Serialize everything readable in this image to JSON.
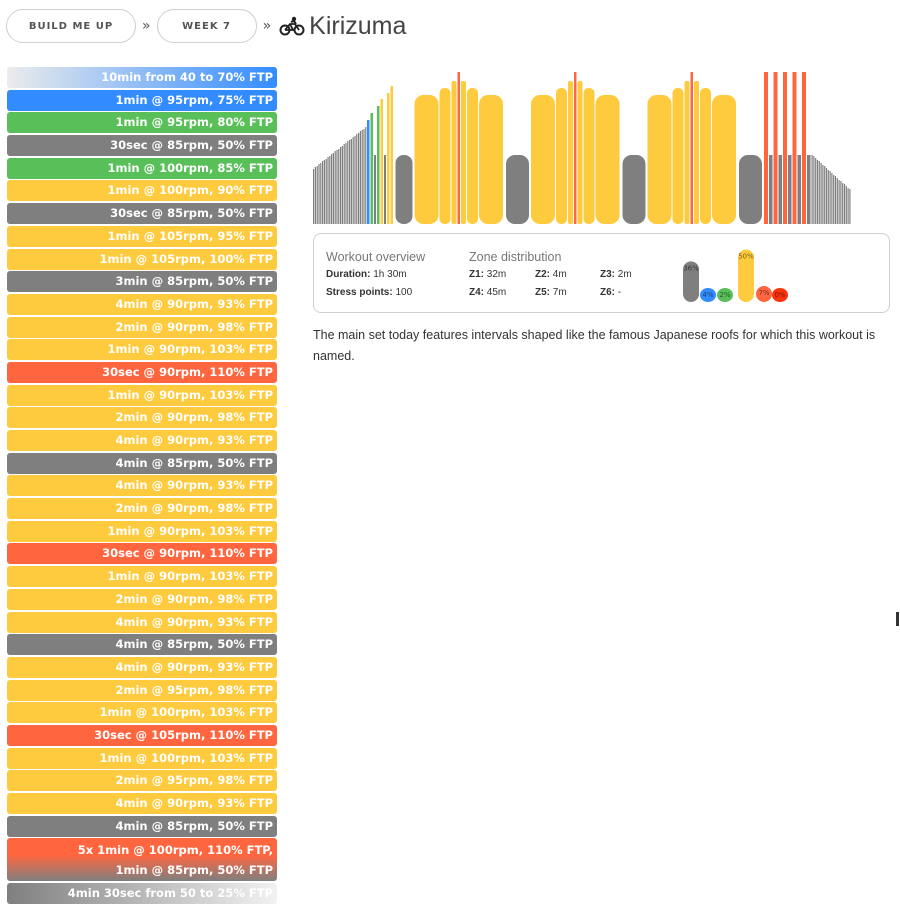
{
  "breadcrumb": {
    "plan": "BUILD ME UP",
    "week": "WEEK 7",
    "separator": "»",
    "workout_title": "Kirizuma",
    "workout_icon": "bike-icon"
  },
  "intervals": [
    {
      "label": "10min from 40 to 70% FTP",
      "zone": "warm"
    },
    {
      "label": "1min @ 95rpm, 75% FTP",
      "zone": "blue"
    },
    {
      "label": "1min @ 95rpm, 80% FTP",
      "zone": "green"
    },
    {
      "label": "30sec @ 85rpm, 50% FTP",
      "zone": "gray"
    },
    {
      "label": "1min @ 100rpm, 85% FTP",
      "zone": "green"
    },
    {
      "label": "1min @ 100rpm, 90% FTP",
      "zone": "yellow"
    },
    {
      "label": "30sec @ 85rpm, 50% FTP",
      "zone": "gray"
    },
    {
      "label": "1min @ 105rpm, 95% FTP",
      "zone": "yellow"
    },
    {
      "label": "1min @ 105rpm, 100% FTP",
      "zone": "yellow"
    },
    {
      "label": "3min @ 85rpm, 50% FTP",
      "zone": "gray"
    },
    {
      "label": "4min @ 90rpm, 93% FTP",
      "zone": "yellow"
    },
    {
      "label": "2min @ 90rpm, 98% FTP",
      "zone": "yellow"
    },
    {
      "label": "1min @ 90rpm, 103% FTP",
      "zone": "yellow"
    },
    {
      "label": "30sec @ 90rpm, 110% FTP",
      "zone": "red"
    },
    {
      "label": "1min @ 90rpm, 103% FTP",
      "zone": "yellow"
    },
    {
      "label": "2min @ 90rpm, 98% FTP",
      "zone": "yellow"
    },
    {
      "label": "4min @ 90rpm, 93% FTP",
      "zone": "yellow"
    },
    {
      "label": "4min @ 85rpm, 50% FTP",
      "zone": "gray"
    },
    {
      "label": "4min @ 90rpm, 93% FTP",
      "zone": "yellow"
    },
    {
      "label": "2min @ 90rpm, 98% FTP",
      "zone": "yellow"
    },
    {
      "label": "1min @ 90rpm, 103% FTP",
      "zone": "yellow"
    },
    {
      "label": "30sec @ 90rpm, 110% FTP",
      "zone": "red"
    },
    {
      "label": "1min @ 90rpm, 103% FTP",
      "zone": "yellow"
    },
    {
      "label": "2min @ 90rpm, 98% FTP",
      "zone": "yellow"
    },
    {
      "label": "4min @ 90rpm, 93% FTP",
      "zone": "yellow"
    },
    {
      "label": "4min @ 85rpm, 50% FTP",
      "zone": "gray"
    },
    {
      "label": "4min @ 90rpm, 93% FTP",
      "zone": "yellow"
    },
    {
      "label": "2min @ 95rpm, 98% FTP",
      "zone": "yellow"
    },
    {
      "label": "1min @ 100rpm, 103% FTP",
      "zone": "yellow"
    },
    {
      "label": "30sec @ 105rpm, 110% FTP",
      "zone": "red"
    },
    {
      "label": "1min @ 100rpm, 103% FTP",
      "zone": "yellow"
    },
    {
      "label": "2min @ 95rpm, 98% FTP",
      "zone": "yellow"
    },
    {
      "label": "4min @ 90rpm, 93% FTP",
      "zone": "yellow"
    },
    {
      "label": "4min @ 85rpm, 50% FTP",
      "zone": "gray"
    },
    {
      "label": "5x 1min @ 100rpm, 110% FTP,",
      "label2": "1min @ 85rpm, 50% FTP",
      "zone": "mixed"
    },
    {
      "label": "4min 30sec from 50 to 25% FTP",
      "zone": "cool"
    }
  ],
  "colors": {
    "z1_gray": "#7f7f7f",
    "z2_blue": "#338cff",
    "z3_green": "#59bf59",
    "z4_yellow": "#fecb3e",
    "z5_red": "#ff6640",
    "z6_red": "#ff330c"
  },
  "overview": {
    "heading": "Workout overview",
    "duration_label": "Duration:",
    "duration_value": "1h 30m",
    "stress_label": "Stress points:",
    "stress_value": "100"
  },
  "zones": {
    "heading": "Zone distribution",
    "z1_label": "Z1:",
    "z1_value": "32m",
    "z2_label": "Z2:",
    "z2_value": "4m",
    "z3_label": "Z3:",
    "z3_value": "2m",
    "z4_label": "Z4:",
    "z4_value": "45m",
    "z5_label": "Z5:",
    "z5_value": "7m",
    "z6_label": "Z6:",
    "z6_value": "-",
    "bubbles": [
      {
        "pct": "36%",
        "value": 36,
        "color": "#7f7f7f"
      },
      {
        "pct": "4%",
        "value": 4,
        "color": "#338cff"
      },
      {
        "pct": "2%",
        "value": 2,
        "color": "#59bf59"
      },
      {
        "pct": "50%",
        "value": 50,
        "color": "#fecb3e"
      },
      {
        "pct": "7%",
        "value": 7,
        "color": "#ff6640"
      },
      {
        "pct": "0%",
        "value": 0,
        "color": "#ff330c"
      }
    ]
  },
  "description": "The main set today features intervals shaped like the famous Japanese roofs for which this workout is named."
}
